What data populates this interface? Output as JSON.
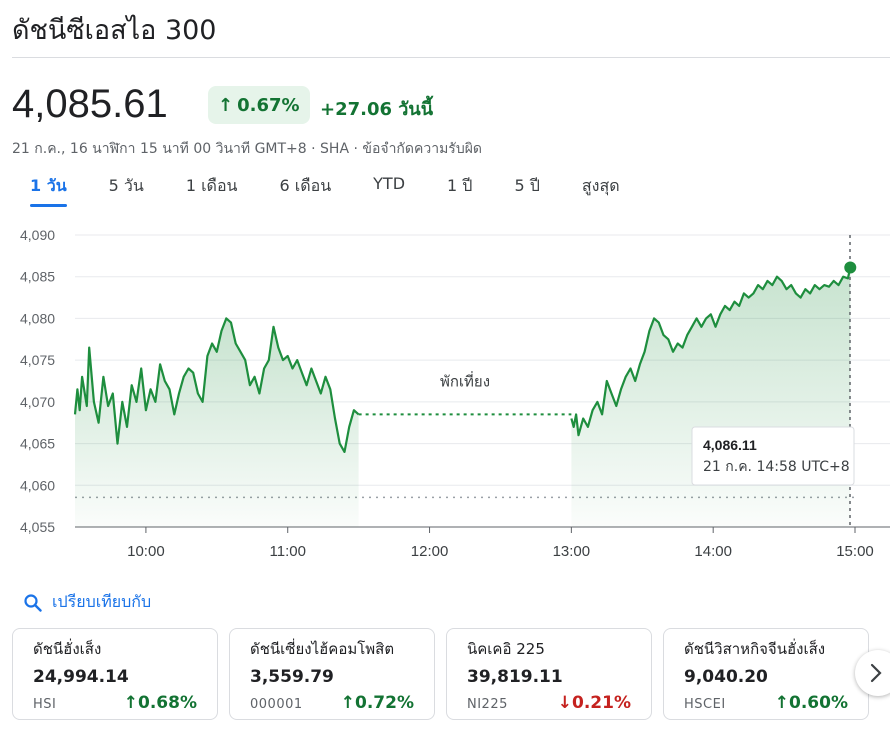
{
  "header": {
    "title": "ดัชนีซีเอสไอ 300",
    "price": "4,085.61",
    "pct_change": "0.67%",
    "abs_change": "+27.06 วันนี้",
    "meta": "21 ก.ค., 16 นาฬิกา 15 นาที 00 วินาที GMT+8 · SHA · ข้อจำกัดความรับผิด"
  },
  "tabs": [
    "1 วัน",
    "5 วัน",
    "1 เดือน",
    "6 เดือน",
    "YTD",
    "1 ปี",
    "5 ปี",
    "สูงสุด"
  ],
  "active_tab": 0,
  "colors": {
    "up": "#1e8e3e",
    "down": "#c5221f",
    "accent": "#1a73e8"
  },
  "chart_data": {
    "type": "area",
    "y_ticks": [
      "4,090",
      "4,085",
      "4,080",
      "4,075",
      "4,070",
      "4,065",
      "4,060",
      "4,055"
    ],
    "x_ticks": [
      "10:00",
      "11:00",
      "12:00",
      "13:00",
      "14:00",
      "15:00"
    ],
    "ylim": [
      4055,
      4090
    ],
    "previous_close": 4058.55,
    "break_label": "พักเที่ยง",
    "tooltip": {
      "value": "4,086.11",
      "time": "21 ก.ค. 14:58 UTC+8"
    },
    "morning": [
      [
        "9:30",
        4068.5
      ],
      [
        "9:31",
        4071.5
      ],
      [
        "9:32",
        4069
      ],
      [
        "9:33",
        4073
      ],
      [
        "9:35",
        4069.5
      ],
      [
        "9:36",
        4076.5
      ],
      [
        "9:38",
        4070
      ],
      [
        "9:40",
        4067.5
      ],
      [
        "9:42",
        4073
      ],
      [
        "9:44",
        4069.5
      ],
      [
        "9:46",
        4071
      ],
      [
        "9:48",
        4065
      ],
      [
        "9:50",
        4070
      ],
      [
        "9:52",
        4067
      ],
      [
        "9:54",
        4072
      ],
      [
        "9:56",
        4070
      ],
      [
        "9:58",
        4074
      ],
      [
        "10:00",
        4069
      ],
      [
        "10:02",
        4071.5
      ],
      [
        "10:04",
        4070
      ],
      [
        "10:06",
        4074.5
      ],
      [
        "10:08",
        4072.5
      ],
      [
        "10:10",
        4071.5
      ],
      [
        "10:12",
        4068.5
      ],
      [
        "10:14",
        4071
      ],
      [
        "10:16",
        4073
      ],
      [
        "10:18",
        4074
      ],
      [
        "10:20",
        4073.5
      ],
      [
        "10:22",
        4071
      ],
      [
        "10:24",
        4070
      ],
      [
        "10:26",
        4075.5
      ],
      [
        "10:28",
        4077
      ],
      [
        "10:30",
        4076
      ],
      [
        "10:32",
        4078.5
      ],
      [
        "10:34",
        4080
      ],
      [
        "10:36",
        4079.5
      ],
      [
        "10:38",
        4077
      ],
      [
        "10:40",
        4076
      ],
      [
        "10:42",
        4075
      ],
      [
        "10:44",
        4072
      ],
      [
        "10:46",
        4073
      ],
      [
        "10:48",
        4071
      ],
      [
        "10:50",
        4074
      ],
      [
        "10:52",
        4075
      ],
      [
        "10:54",
        4079
      ],
      [
        "10:56",
        4076.5
      ],
      [
        "10:58",
        4075
      ],
      [
        "11:00",
        4075.5
      ],
      [
        "11:02",
        4074
      ],
      [
        "11:04",
        4075
      ],
      [
        "11:06",
        4073.5
      ],
      [
        "11:08",
        4072
      ],
      [
        "11:10",
        4074
      ],
      [
        "11:12",
        4072.5
      ],
      [
        "11:14",
        4071
      ],
      [
        "11:16",
        4073
      ],
      [
        "11:18",
        4071.5
      ],
      [
        "11:20",
        4068
      ],
      [
        "11:22",
        4065
      ],
      [
        "11:24",
        4064
      ],
      [
        "11:26",
        4067
      ],
      [
        "11:28",
        4069
      ],
      [
        "11:30",
        4068.5
      ]
    ],
    "afternoon": [
      [
        "13:00",
        4068
      ],
      [
        "13:01",
        4067
      ],
      [
        "13:02",
        4068.5
      ],
      [
        "13:03",
        4066
      ],
      [
        "13:05",
        4068
      ],
      [
        "13:07",
        4067
      ],
      [
        "13:09",
        4069
      ],
      [
        "13:11",
        4070
      ],
      [
        "13:13",
        4068.5
      ],
      [
        "13:15",
        4072.5
      ],
      [
        "13:17",
        4071
      ],
      [
        "13:19",
        4069.5
      ],
      [
        "13:21",
        4071.5
      ],
      [
        "13:23",
        4073
      ],
      [
        "13:25",
        4074
      ],
      [
        "13:27",
        4072.5
      ],
      [
        "13:29",
        4074.5
      ],
      [
        "13:31",
        4076
      ],
      [
        "13:33",
        4078.5
      ],
      [
        "13:35",
        4080
      ],
      [
        "13:37",
        4079.5
      ],
      [
        "13:39",
        4078
      ],
      [
        "13:41",
        4077.5
      ],
      [
        "13:43",
        4076
      ],
      [
        "13:45",
        4077
      ],
      [
        "13:47",
        4076.5
      ],
      [
        "13:49",
        4078
      ],
      [
        "13:51",
        4079
      ],
      [
        "13:53",
        4080
      ],
      [
        "13:55",
        4079
      ],
      [
        "13:57",
        4080
      ],
      [
        "13:59",
        4080.5
      ],
      [
        "14:01",
        4079
      ],
      [
        "14:03",
        4080.5
      ],
      [
        "14:05",
        4081.5
      ],
      [
        "14:07",
        4081
      ],
      [
        "14:09",
        4082
      ],
      [
        "14:11",
        4081.5
      ],
      [
        "14:13",
        4083
      ],
      [
        "14:15",
        4082.5
      ],
      [
        "14:17",
        4083
      ],
      [
        "14:19",
        4084
      ],
      [
        "14:21",
        4083.5
      ],
      [
        "14:23",
        4084.5
      ],
      [
        "14:25",
        4084
      ],
      [
        "14:27",
        4085
      ],
      [
        "14:29",
        4084.5
      ],
      [
        "14:31",
        4083.5
      ],
      [
        "14:33",
        4084
      ],
      [
        "14:35",
        4083
      ],
      [
        "14:37",
        4082.5
      ],
      [
        "14:39",
        4083.5
      ],
      [
        "14:41",
        4083
      ],
      [
        "14:43",
        4084
      ],
      [
        "14:45",
        4083.5
      ],
      [
        "14:47",
        4084
      ],
      [
        "14:49",
        4083.8
      ],
      [
        "14:51",
        4084.5
      ],
      [
        "14:53",
        4084
      ],
      [
        "14:55",
        4085
      ],
      [
        "14:57",
        4084.8
      ],
      [
        "14:58",
        4086.11
      ]
    ]
  },
  "compare": {
    "label": "เปรียบเทียบกับ"
  },
  "cards": [
    {
      "name": "ดัชนีฮั่งเส็ง",
      "value": "24,994.14",
      "symbol": "HSI",
      "change": "0.68%",
      "dir": "up"
    },
    {
      "name": "ดัชนีเซี่ยงไฮ้คอมโพสิต",
      "value": "3,559.79",
      "symbol": "000001",
      "change": "0.72%",
      "dir": "up"
    },
    {
      "name": "นิคเคอิ 225",
      "value": "39,819.11",
      "symbol": "NI225",
      "change": "0.21%",
      "dir": "down"
    },
    {
      "name": "ดัชนีวิสาหกิจจีนฮั่งเส็ง",
      "value": "9,040.20",
      "symbol": "HSCEI",
      "change": "0.60%",
      "dir": "up"
    }
  ]
}
